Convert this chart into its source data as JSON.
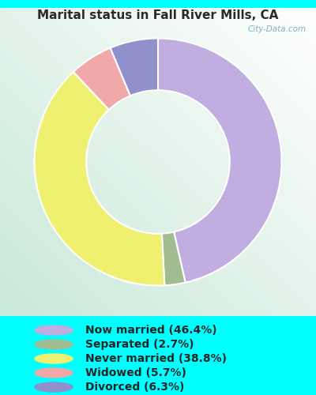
{
  "title": "Marital status in Fall River Mills, CA",
  "categories": [
    "Now married",
    "Separated",
    "Never married",
    "Widowed",
    "Divorced"
  ],
  "values": [
    46.4,
    2.7,
    38.8,
    5.7,
    6.3
  ],
  "colors": [
    "#c0aee0",
    "#a0bc90",
    "#f0f070",
    "#f0a8a8",
    "#9090cc"
  ],
  "legend_labels": [
    "Now married (46.4%)",
    "Separated (2.7%)",
    "Never married (38.8%)",
    "Widowed (5.7%)",
    "Divorced (6.3%)"
  ],
  "bg_color": "#00ffff",
  "title_color": "#2a2a2a",
  "legend_text_color": "#252525",
  "figsize": [
    4.0,
    5.0
  ],
  "dpi": 100,
  "watermark": "City-Data.com"
}
